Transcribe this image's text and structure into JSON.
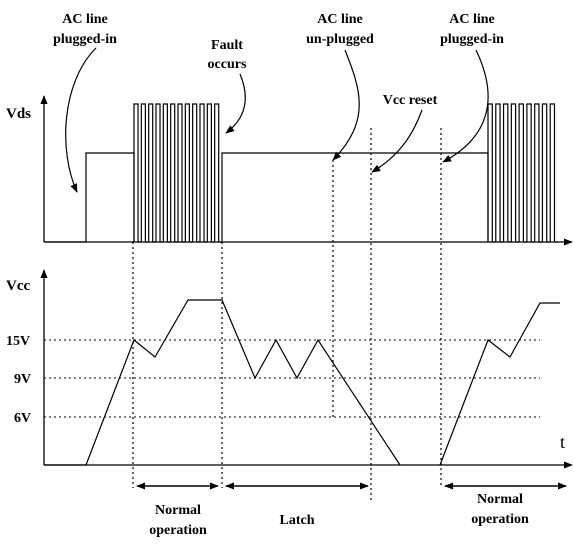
{
  "labels": {
    "ac_plugged_in_1": [
      "AC line",
      "plugged-in"
    ],
    "fault_occurs": [
      "Fault",
      "occurs"
    ],
    "ac_unplugged": [
      "AC line",
      "un-plugged"
    ],
    "vcc_reset": "Vcc reset",
    "ac_plugged_in_2": [
      "AC line",
      "plugged-in"
    ]
  },
  "axes": {
    "vds": "Vds",
    "vcc": "Vcc",
    "time": "t"
  },
  "levels": {
    "v15": "15V",
    "v9": "9V",
    "v6": "6V"
  },
  "phases": {
    "normal_1": [
      "Normal",
      "operation"
    ],
    "latch": "Latch",
    "normal_2": [
      "Normal",
      "operation"
    ]
  }
}
